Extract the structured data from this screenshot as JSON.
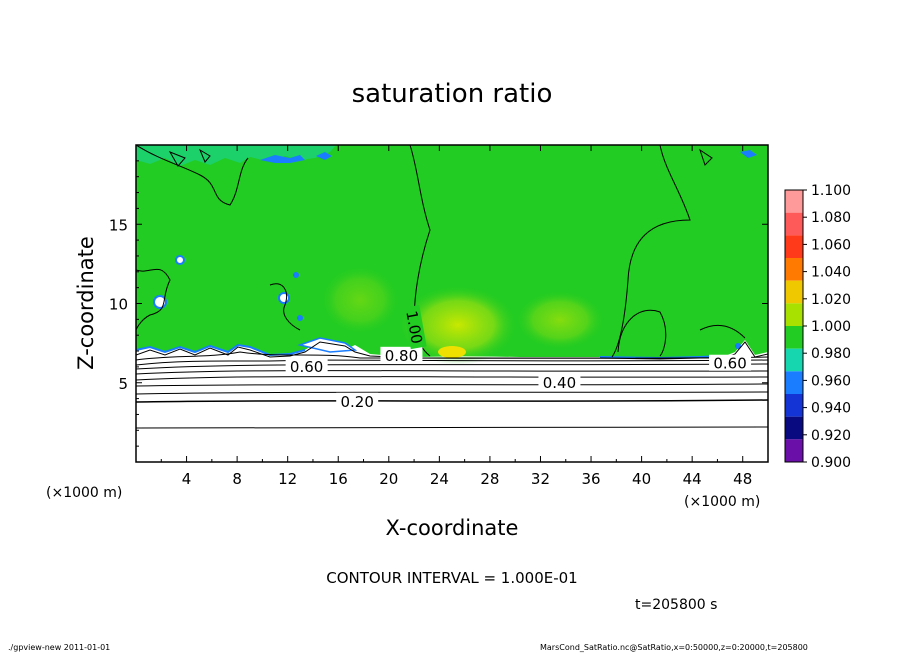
{
  "chart_data": {
    "type": "heatmap",
    "title": "saturation ratio",
    "xlabel": "X-coordinate",
    "ylabel": "Z-coordinate",
    "x_unit": "(×1000 m)",
    "y_unit": "(×1000 m)",
    "xlim": [
      0,
      50
    ],
    "ylim": [
      0,
      20
    ],
    "x_ticks": [
      4,
      8,
      12,
      16,
      20,
      24,
      28,
      32,
      36,
      40,
      44,
      48
    ],
    "y_ticks": [
      5,
      10,
      15
    ],
    "colorbar": {
      "levels": [
        "1.100",
        "1.080",
        "1.060",
        "1.040",
        "1.020",
        "1.000",
        "0.980",
        "0.960",
        "0.940",
        "0.920",
        "0.900"
      ],
      "colors": [
        "#ff9a9a",
        "#ff5a5a",
        "#ff3a1a",
        "#ff7a00",
        "#f0c800",
        "#a8e000",
        "#22cc22",
        "#16d6b0",
        "#1a7cff",
        "#1434d6",
        "#0a0a80",
        "#6a10a8"
      ]
    },
    "contour_labels": [
      {
        "text": "0.20",
        "x": 17.5,
        "z": 3.8
      },
      {
        "text": "0.40",
        "x": 33.5,
        "z": 5.0
      },
      {
        "text": "0.60",
        "x": 13.5,
        "z": 6.0
      },
      {
        "text": "0.80",
        "x": 21.0,
        "z": 6.7
      },
      {
        "text": "0.60",
        "x": 47.0,
        "z": 6.2
      },
      {
        "text": "1.00",
        "x": 22.0,
        "z": 8.5
      }
    ],
    "grid": false,
    "legend": "right"
  },
  "annotations": {
    "contour_interval": "CONTOUR INTERVAL = 1.000E-01",
    "time": "t=205800 s"
  },
  "footer": {
    "left": "./gpview-new   2011-01-01",
    "right": "MarsCond_SatRatio.nc@SatRatio,x=0:50000,z=0:20000,t=205800"
  }
}
